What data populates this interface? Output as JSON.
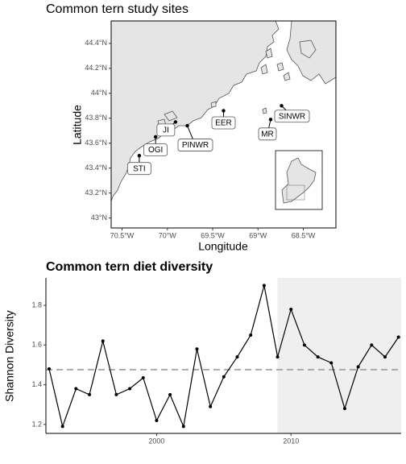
{
  "chart_data": [
    {
      "type": "map",
      "title": "Common tern study sites",
      "x_label": "Longitude",
      "y_label": "Latitude",
      "xlim": [
        -70.62,
        -68.14
      ],
      "ylim": [
        42.92,
        44.58
      ],
      "xticks": [
        {
          "value": -70.5,
          "label": "70.5°W"
        },
        {
          "value": -70,
          "label": "70°W"
        },
        {
          "value": -69.5,
          "label": "69.5°W"
        },
        {
          "value": -69,
          "label": "69°W"
        },
        {
          "value": -68.5,
          "label": "68.5°W"
        }
      ],
      "yticks": [
        {
          "value": 43,
          "label": "43°N"
        },
        {
          "value": 43.2,
          "label": "43.2°N"
        },
        {
          "value": 43.4,
          "label": "43.4°N"
        },
        {
          "value": 43.6,
          "label": "43.6°N"
        },
        {
          "value": 43.8,
          "label": "43.8°N"
        },
        {
          "value": 44,
          "label": "44°N"
        },
        {
          "value": 44.2,
          "label": "44.2°N"
        },
        {
          "value": 44.4,
          "label": "44.4°N"
        }
      ],
      "sites": [
        {
          "name": "STI",
          "lon": -70.31,
          "lat": 43.5
        },
        {
          "name": "OGI",
          "lon": -70.13,
          "lat": 43.65
        },
        {
          "name": "JI",
          "lon": -69.91,
          "lat": 43.77
        },
        {
          "name": "PINWR",
          "lon": -69.78,
          "lat": 43.74
        },
        {
          "name": "EER",
          "lon": -69.38,
          "lat": 43.86
        },
        {
          "name": "MR",
          "lon": -68.86,
          "lat": 43.79
        },
        {
          "name": "SINWR",
          "lon": -68.74,
          "lat": 43.9
        }
      ]
    },
    {
      "type": "line",
      "title": "Common tern diet diversity",
      "y_label": "Shannon Diversity",
      "x": [
        1992,
        1993,
        1994,
        1995,
        1996,
        1997,
        1998,
        1999,
        2000,
        2001,
        2002,
        2003,
        2004,
        2005,
        2006,
        2007,
        2008,
        2009,
        2010,
        2011,
        2012,
        2013,
        2014,
        2015,
        2016,
        2017,
        2018
      ],
      "values": [
        1.48,
        1.19,
        1.38,
        1.35,
        1.62,
        1.35,
        1.38,
        1.435,
        1.22,
        1.35,
        1.19,
        1.58,
        1.29,
        1.44,
        1.54,
        1.65,
        1.9,
        1.54,
        1.78,
        1.6,
        1.54,
        1.51,
        1.28,
        1.49,
        1.6,
        1.54,
        1.64
      ],
      "color": "#000000",
      "reference_line": 1.476,
      "reference_color": "#aaaaaa",
      "shaded_region": [
        2009,
        2018.2
      ],
      "shade_color": "#efefef",
      "xlim": [
        1991.76,
        2018.2
      ],
      "ylim": [
        1.155,
        1.938
      ],
      "xticks": [
        2000,
        2010
      ],
      "yticks": [
        1.2,
        1.4,
        1.6,
        1.8
      ]
    }
  ]
}
